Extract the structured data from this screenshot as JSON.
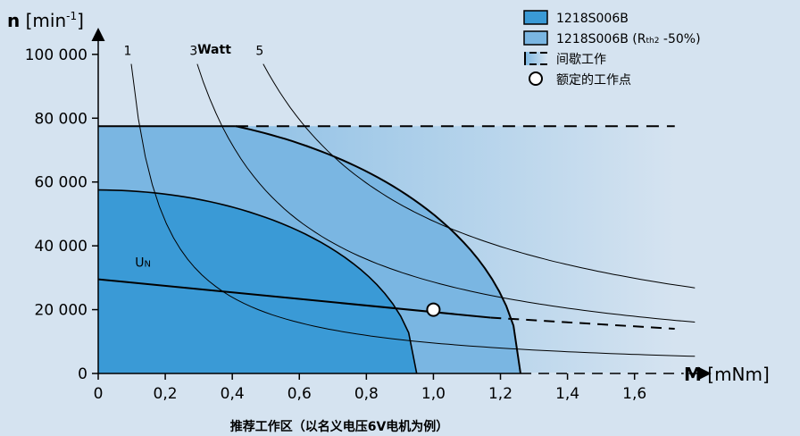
{
  "chart_data": {
    "type": "area",
    "y_axis": {
      "symbol": "n",
      "unit_open": " [min",
      "unit_exp": "-1",
      "unit_close": "]"
    },
    "x_axis": {
      "symbol": "M",
      "unit": " [mNm]"
    },
    "yticks": [
      0,
      20000,
      40000,
      60000,
      80000,
      100000
    ],
    "ytick_labels": [
      "0",
      "20 000",
      "40 000",
      "60 000",
      "80 000",
      "100 000"
    ],
    "xticks": [
      0,
      0.2,
      0.4,
      0.6,
      0.8,
      1.0,
      1.2,
      1.4,
      1.6
    ],
    "xtick_labels": [
      "0",
      "0,2",
      "0,4",
      "0,6",
      "0,8",
      "1,0",
      "1,2",
      "1,4",
      "1,6"
    ],
    "xlim": [
      0,
      1.75
    ],
    "ylim": [
      0,
      105000
    ],
    "power_label": "Watt",
    "power_curves": [
      {
        "label": "1",
        "watt": 1
      },
      {
        "label": "3",
        "watt": 3
      },
      {
        "label": "5",
        "watt": 5
      }
    ],
    "speed_limit": 77500,
    "rated_region": {
      "n0": 57500,
      "m_max": 0.95
    },
    "extended_region": {
      "n_limit": 77500,
      "m_knee": 0.41,
      "m_max": 1.26
    },
    "intermittent_fade_to": 1.72,
    "un_line": {
      "label": "U",
      "label_sub": "N",
      "points": [
        [
          0,
          29500
        ],
        [
          1.17,
          17500
        ]
      ],
      "dashed_to": [
        1.72,
        14000
      ]
    },
    "operating_point": {
      "m": 1.0,
      "n": 20000
    },
    "legend": [
      {
        "label": "1218S006B",
        "sub": "",
        "tail": "",
        "color": "#3a9ad6"
      },
      {
        "label": "1218S006B (R",
        "sub": "th2",
        "tail": " -50%)",
        "color": "#7ab6e2"
      },
      {
        "label": "间歇工作",
        "sub": "",
        "tail": "",
        "color": ""
      },
      {
        "label": "额定的工作点",
        "sub": "",
        "tail": "",
        "color": ""
      }
    ],
    "caption": "推荐工作区（以名义电压6V电机为例）"
  }
}
